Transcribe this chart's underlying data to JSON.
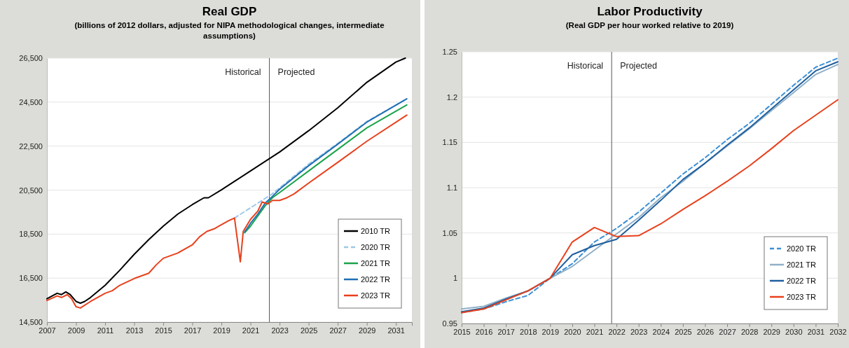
{
  "chart_data": [
    {
      "type": "line",
      "title": "Real GDP",
      "subtitle": "(billions of 2012 dollars, adjusted for NIPA methodological changes, intermediate assumptions)",
      "xlim": [
        2007,
        2032.1
      ],
      "xticks": [
        2007,
        2009,
        2011,
        2013,
        2015,
        2017,
        2019,
        2021,
        2023,
        2025,
        2027,
        2029,
        2031
      ],
      "ylim": [
        14500,
        26500
      ],
      "yticks": [
        {
          "value": 14500,
          "label": "14,500"
        },
        {
          "value": 16500,
          "label": "16,500"
        },
        {
          "value": 18500,
          "label": "18,500"
        },
        {
          "value": 20500,
          "label": "20,500"
        },
        {
          "value": 22500,
          "label": "22,500"
        },
        {
          "value": 24500,
          "label": "24,500"
        },
        {
          "value": 26500,
          "label": "26,500"
        }
      ],
      "grid": "y",
      "legend": "bottom right",
      "ref_lines": [
        {
          "axis": "x",
          "value": 2022.3,
          "color": "#555555"
        }
      ],
      "annotations": [
        "Historical",
        "Projected"
      ],
      "series": [
        {
          "name": "2010 TR",
          "color": "#000000",
          "x": [
            2007,
            2007.7,
            2008,
            2008.3,
            2008.6,
            2009,
            2009.3,
            2009.6,
            2010,
            2011,
            2012,
            2013,
            2014,
            2015,
            2016,
            2017,
            2017.8,
            2018.1,
            2019,
            2020,
            2021,
            2022,
            2023,
            2025,
            2027,
            2029,
            2031,
            2031.65
          ],
          "values": [
            15560,
            15810,
            15750,
            15870,
            15750,
            15440,
            15360,
            15440,
            15620,
            16170,
            16850,
            17580,
            18250,
            18860,
            19410,
            19840,
            20150,
            20150,
            20510,
            20940,
            21370,
            21800,
            22230,
            23200,
            24240,
            25400,
            26320,
            26500
          ]
        },
        {
          "name": "2020 TR",
          "color": "#9cc8e8",
          "line_style": "dashed",
          "x": [
            2019.9,
            2022.5,
            2025,
            2027,
            2029,
            2031.75
          ],
          "values": [
            19230,
            20330,
            21680,
            22620,
            23620,
            24650
          ]
        },
        {
          "name": "2021 TR",
          "color": "#1aa34a",
          "x": [
            2020.6,
            2021,
            2022,
            2022.5,
            2023,
            2025,
            2027,
            2029,
            2031.75
          ],
          "values": [
            18560,
            18860,
            19780,
            20150,
            20390,
            21370,
            22350,
            23330,
            24370
          ]
        },
        {
          "name": "2022 TR",
          "color": "#1f6fb5",
          "x": [
            2020.6,
            2021,
            2021.5,
            2022,
            2022.5,
            2023,
            2025,
            2027,
            2029,
            2031.75
          ],
          "values": [
            18600,
            18990,
            19410,
            19900,
            20210,
            20540,
            21610,
            22590,
            23590,
            24650
          ]
        },
        {
          "name": "2023 TR",
          "color": "#e8401c",
          "x": [
            2007,
            2007.7,
            2008,
            2008.4,
            2008.7,
            2009,
            2009.3,
            2010,
            2011,
            2011.5,
            2012,
            2013,
            2014,
            2014.5,
            2015,
            2016,
            2017,
            2017.5,
            2018,
            2018.5,
            2019,
            2019.5,
            2019.9,
            2020.3,
            2020.5,
            2021,
            2021.5,
            2021.8,
            2022.2,
            2022.5,
            2023,
            2023.5,
            2024,
            2025,
            2027,
            2029,
            2031.75
          ],
          "values": [
            15480,
            15690,
            15620,
            15750,
            15560,
            15200,
            15140,
            15440,
            15810,
            15930,
            16170,
            16480,
            16720,
            17090,
            17400,
            17640,
            18010,
            18380,
            18620,
            18740,
            18930,
            19110,
            19230,
            17240,
            18620,
            19170,
            19540,
            19960,
            19870,
            20030,
            20030,
            20150,
            20330,
            20820,
            21760,
            22720,
            23910
          ]
        }
      ]
    },
    {
      "type": "line",
      "title": "Labor Productivity",
      "subtitle": "(Real GDP per hour worked relative to 2019)",
      "xlim": [
        2015,
        2032
      ],
      "xticks": [
        2015,
        2016,
        2017,
        2018,
        2019,
        2020,
        2021,
        2022,
        2023,
        2024,
        2025,
        2026,
        2027,
        2028,
        2029,
        2030,
        2031,
        2032
      ],
      "ylim": [
        0.95,
        1.25
      ],
      "yticks": [
        0.95,
        1,
        1.05,
        1.1,
        1.15,
        1.2,
        1.25
      ],
      "grid": "y",
      "legend": "bottom right",
      "ref_lines": [
        {
          "axis": "x",
          "value": 2021.78,
          "color": "#555555"
        }
      ],
      "annotations": [
        "Historical",
        "Projected"
      ],
      "series": [
        {
          "name": "2020 TR",
          "color": "#3b8fd6",
          "line_style": "dashed",
          "x": [
            2015,
            2016,
            2017,
            2018,
            2019,
            2020,
            2021,
            2022,
            2023,
            2024,
            2025,
            2026,
            2027,
            2028,
            2029,
            2030,
            2031,
            2032
          ],
          "values": [
            0.962,
            0.966,
            0.974,
            0.981,
            1.0,
            1.016,
            1.04,
            1.055,
            1.073,
            1.094,
            1.115,
            1.133,
            1.153,
            1.171,
            1.192,
            1.213,
            1.233,
            1.243
          ]
        },
        {
          "name": "2021 TR",
          "color": "#8fb0c8",
          "x": [
            2015,
            2016,
            2017,
            2018,
            2019,
            2020,
            2021,
            2022,
            2023,
            2024,
            2025,
            2026,
            2027,
            2028,
            2029,
            2030,
            2031,
            2032
          ],
          "values": [
            0.966,
            0.969,
            0.978,
            0.986,
            1.0,
            1.013,
            1.031,
            1.049,
            1.067,
            1.089,
            1.107,
            1.127,
            1.146,
            1.165,
            1.185,
            1.205,
            1.225,
            1.236
          ]
        },
        {
          "name": "2022 TR",
          "color": "#1f5f9e",
          "x": [
            2015,
            2016,
            2017,
            2018,
            2019,
            2020,
            2021,
            2022,
            2023,
            2024,
            2025,
            2026,
            2027,
            2028,
            2029,
            2030,
            2031,
            2032
          ],
          "values": [
            0.963,
            0.967,
            0.977,
            0.986,
            1.0,
            1.026,
            1.036,
            1.043,
            1.064,
            1.086,
            1.109,
            1.127,
            1.147,
            1.166,
            1.187,
            1.208,
            1.229,
            1.239
          ]
        },
        {
          "name": "2023 TR",
          "color": "#e8401c",
          "x": [
            2015,
            2016,
            2017,
            2018,
            2019,
            2020,
            2021,
            2022,
            2023,
            2024,
            2025,
            2026,
            2027,
            2028,
            2029,
            2030,
            2031,
            2032
          ],
          "values": [
            0.962,
            0.966,
            0.976,
            0.986,
            1.0,
            1.04,
            1.056,
            1.046,
            1.047,
            1.06,
            1.076,
            1.091,
            1.107,
            1.124,
            1.143,
            1.163,
            1.18,
            1.197
          ]
        }
      ]
    }
  ]
}
